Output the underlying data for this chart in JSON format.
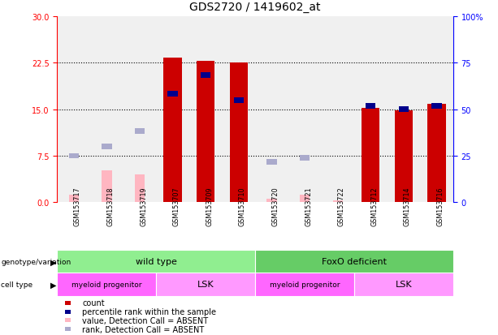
{
  "title": "GDS2720 / 1419602_at",
  "samples": [
    "GSM153717",
    "GSM153718",
    "GSM153719",
    "GSM153707",
    "GSM153709",
    "GSM153710",
    "GSM153720",
    "GSM153721",
    "GSM153722",
    "GSM153712",
    "GSM153714",
    "GSM153716"
  ],
  "count_values": [
    null,
    null,
    null,
    23.3,
    22.8,
    22.5,
    null,
    null,
    null,
    15.2,
    14.8,
    15.8
  ],
  "count_absent_values": [
    1.2,
    5.2,
    4.5,
    null,
    null,
    null,
    0.6,
    1.2,
    0.3,
    null,
    null,
    null
  ],
  "rank_values_left": [
    null,
    null,
    null,
    17.5,
    20.5,
    16.5,
    null,
    null,
    null,
    15.5,
    15.0,
    15.5
  ],
  "rank_absent_values_left": [
    7.5,
    9.0,
    11.5,
    null,
    null,
    null,
    6.5,
    7.2,
    null,
    null,
    null,
    null
  ],
  "ylim_left": [
    0,
    30
  ],
  "ylim_right": [
    0,
    100
  ],
  "yticks_left": [
    0,
    7.5,
    15,
    22.5,
    30
  ],
  "yticks_right": [
    0,
    25,
    50,
    75,
    100
  ],
  "bar_color_count": "#CC0000",
  "bar_color_rank": "#00008B",
  "bar_color_absent_count": "#FFB6C1",
  "bar_color_absent_rank": "#AAAACC",
  "background_plot": "#F0F0F0",
  "background_labels": "#C8C8C8",
  "color_myeloid": "#FF66FF",
  "color_lsk": "#FF99FF",
  "color_wildtype": "#90EE90",
  "color_foxo": "#66CC66",
  "legend_items": [
    {
      "color": "#CC0000",
      "label": "count"
    },
    {
      "color": "#00008B",
      "label": "percentile rank within the sample"
    },
    {
      "color": "#FFB6C1",
      "label": "value, Detection Call = ABSENT"
    },
    {
      "color": "#AAAACC",
      "label": "rank, Detection Call = ABSENT"
    }
  ]
}
